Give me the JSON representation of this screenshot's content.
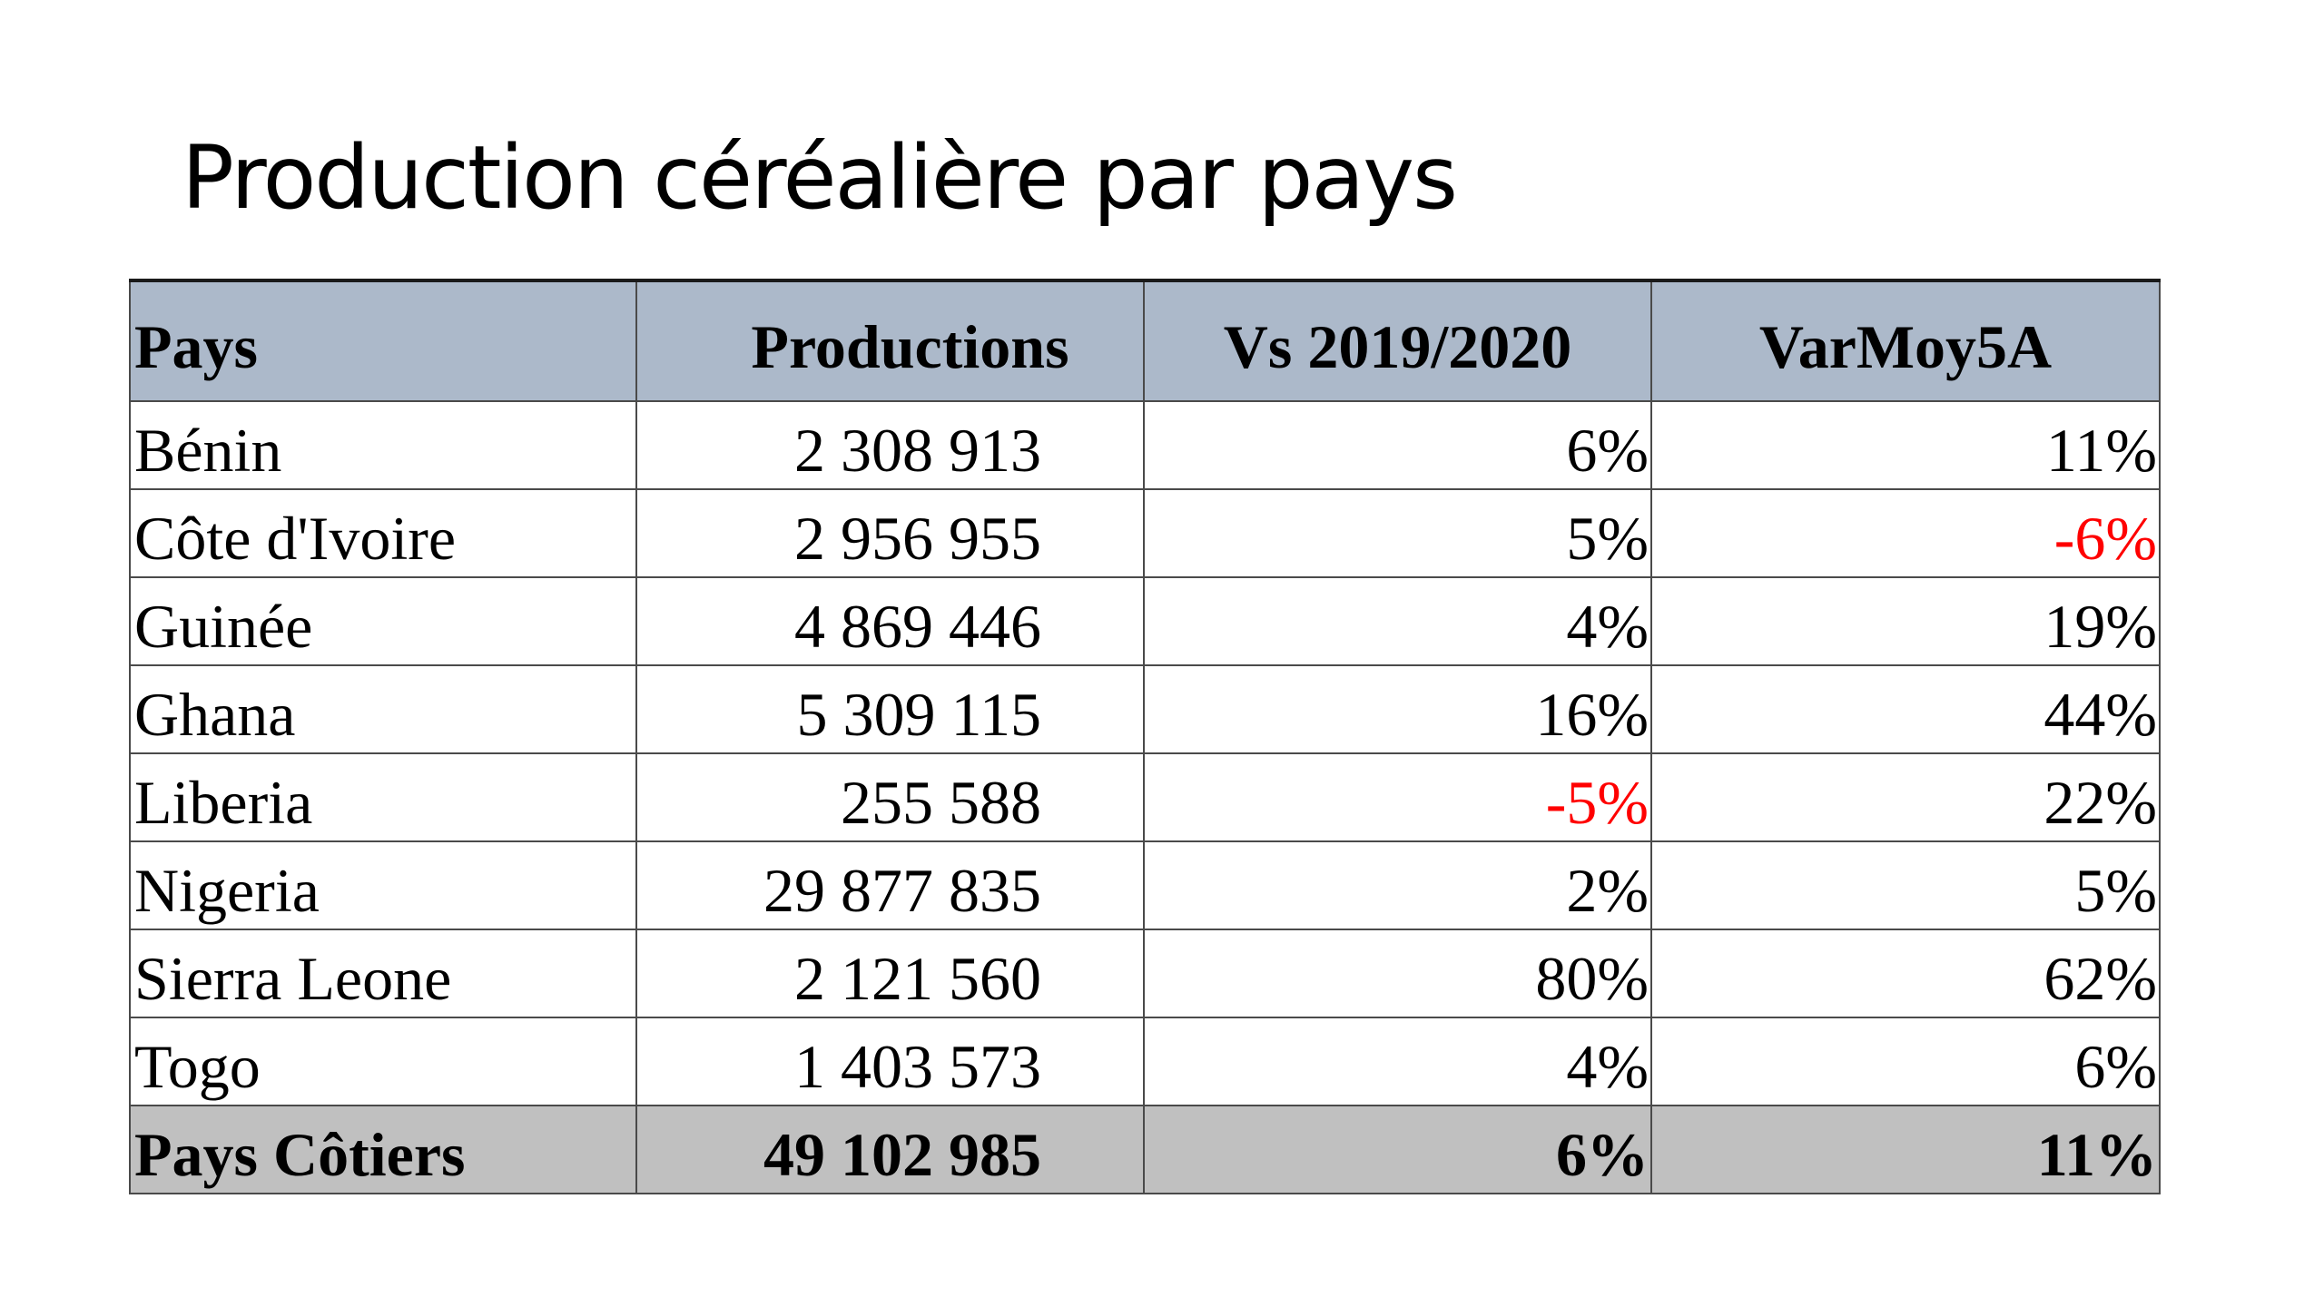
{
  "slide": {
    "title": "Production céréalière par pays"
  },
  "table": {
    "headers": [
      "Pays",
      "Productions",
      "Vs 2019/2020",
      "VarMoy5A"
    ],
    "rows": [
      {
        "pays": "Bénin",
        "production": "2 308 913",
        "vs_2019_2020": "6%",
        "varmoy5a": "11%"
      },
      {
        "pays": "Côte d'Ivoire",
        "production": "2 956 955",
        "vs_2019_2020": "5%",
        "varmoy5a": "-6%"
      },
      {
        "pays": "Guinée",
        "production": "4 869 446",
        "vs_2019_2020": "4%",
        "varmoy5a": "19%"
      },
      {
        "pays": "Ghana",
        "production": "5 309 115",
        "vs_2019_2020": "16%",
        "varmoy5a": "44%"
      },
      {
        "pays": "Liberia",
        "production": "255 588",
        "vs_2019_2020": "-5%",
        "varmoy5a": "22%"
      },
      {
        "pays": "Nigeria",
        "production": "29 877 835",
        "vs_2019_2020": "2%",
        "varmoy5a": "5%"
      },
      {
        "pays": "Sierra Leone",
        "production": "2 121 560",
        "vs_2019_2020": "80%",
        "varmoy5a": "62%"
      },
      {
        "pays": "Togo",
        "production": "1 403 573",
        "vs_2019_2020": "4%",
        "varmoy5a": "6%"
      }
    ],
    "total": {
      "pays": "Pays Côtiers",
      "production": "49 102 985",
      "vs_2019_2020": "6%",
      "varmoy5a": "11%"
    }
  },
  "colors": {
    "header_background": "#acb9ca",
    "total_background": "#c0c0c0",
    "negative_value": "#ff0000",
    "border": "#4a4a4a"
  }
}
